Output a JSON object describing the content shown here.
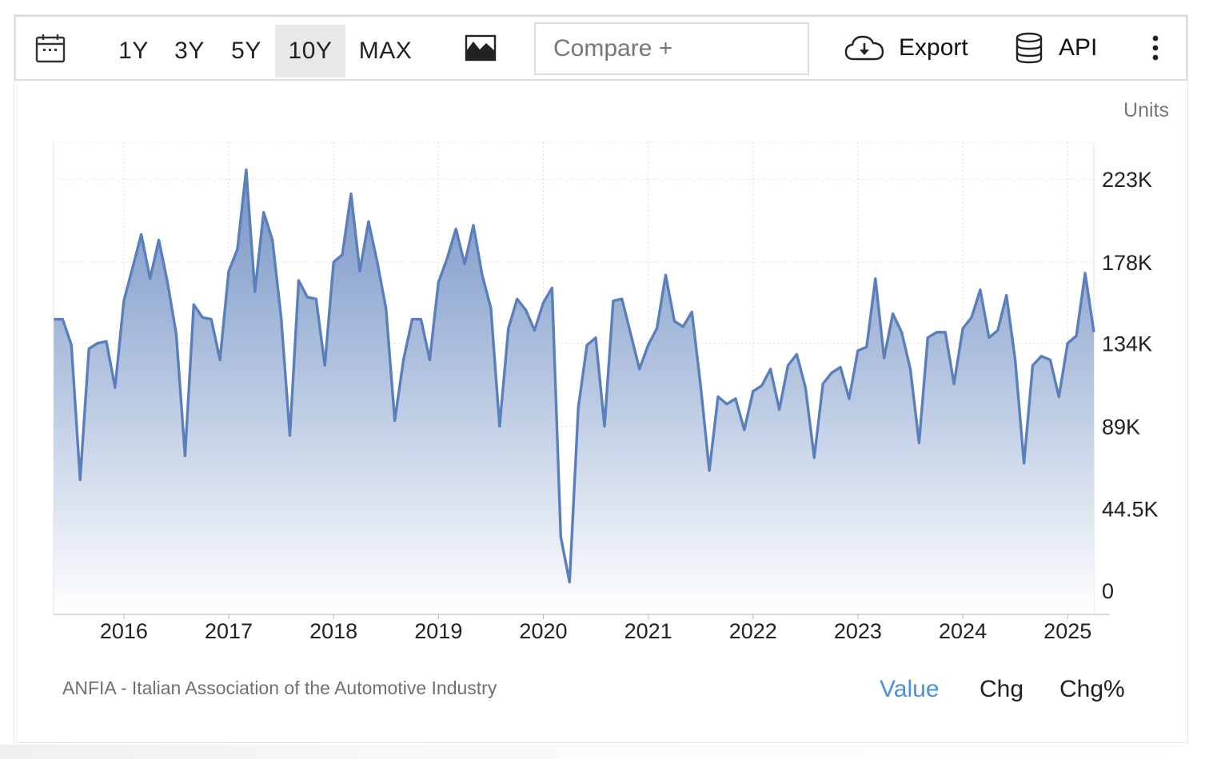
{
  "toolbar": {
    "ranges": [
      "1Y",
      "3Y",
      "5Y",
      "10Y",
      "MAX"
    ],
    "active_range": "10Y",
    "compare_placeholder": "Compare +",
    "export_label": "Export",
    "api_label": "API",
    "icons": {
      "calendar": "calendar-icon",
      "chart_type": "area-chart-icon",
      "export": "cloud-download-icon",
      "api": "database-icon",
      "more": "more-vertical-icon"
    }
  },
  "footer": {
    "source": "ANFIA - Italian Association of the Automotive Industry",
    "tabs": [
      "Value",
      "Chg",
      "Chg%"
    ],
    "active_tab": "Value"
  },
  "colors": {
    "line": "#5a7fba",
    "fill_top": "#6f8fc3",
    "active_tab": "#4a90e2"
  },
  "chart_data": {
    "type": "area",
    "units_label": "Units",
    "y_ticks": [
      {
        "value": 0,
        "label": "0"
      },
      {
        "value": 44500,
        "label": "44.5K"
      },
      {
        "value": 89000,
        "label": "89K"
      },
      {
        "value": 134000,
        "label": "134K"
      },
      {
        "value": 178000,
        "label": "178K"
      },
      {
        "value": 223000,
        "label": "223K"
      }
    ],
    "ylim": [
      -13000,
      243000
    ],
    "x_ticks": [
      2016,
      2017,
      2018,
      2019,
      2020,
      2021,
      2022,
      2023,
      2024,
      2025
    ],
    "xlim": [
      2015.33,
      2025.25
    ],
    "grid": true,
    "legend": "none",
    "series": [
      {
        "x_start": "2015-05",
        "frequency": "monthly",
        "values": [
          147000,
          147000,
          133000,
          60000,
          131000,
          134000,
          135000,
          110000,
          157000,
          175000,
          193000,
          169000,
          190000,
          167000,
          139000,
          73000,
          155000,
          148000,
          147000,
          125000,
          173000,
          185000,
          228000,
          162000,
          205000,
          190000,
          148000,
          84000,
          168000,
          159000,
          158000,
          122000,
          178000,
          182000,
          215000,
          173000,
          200000,
          178000,
          153000,
          92000,
          125000,
          147000,
          147000,
          125000,
          167000,
          180000,
          196000,
          177000,
          198000,
          171000,
          153000,
          89000,
          142000,
          158000,
          152000,
          141000,
          156000,
          164000,
          29000,
          4500,
          99000,
          133000,
          137000,
          89000,
          157000,
          158000,
          139000,
          120000,
          133000,
          142000,
          171000,
          146000,
          143000,
          151000,
          111000,
          65000,
          105000,
          101000,
          104000,
          87000,
          108000,
          111000,
          120000,
          98000,
          122000,
          128000,
          110000,
          72000,
          112000,
          118000,
          121000,
          104000,
          130000,
          132000,
          169000,
          126000,
          150000,
          140000,
          120000,
          80000,
          137000,
          140000,
          140000,
          112000,
          142000,
          148000,
          163000,
          137000,
          141000,
          160000,
          125000,
          69000,
          122000,
          127000,
          125000,
          105000,
          134000,
          138000,
          172000,
          140000
        ]
      }
    ]
  }
}
